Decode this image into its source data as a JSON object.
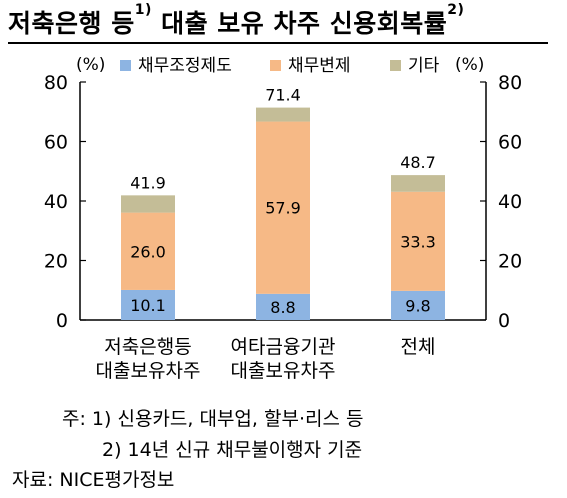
{
  "title": {
    "text": "저축은행 등",
    "sup1": "1)",
    "text2": "대출 보유 차주 신용회복률",
    "sup2": "2)"
  },
  "chart_data": {
    "type": "bar",
    "stacked": true,
    "title": "저축은행 등 대출 보유 차주 신용회복률",
    "y_unit_left": "(%)",
    "y_unit_right": "(%)",
    "ylim": [
      0,
      80
    ],
    "yticks": [
      0,
      20,
      40,
      60,
      80
    ],
    "dual_axis_mirrored": true,
    "grid": false,
    "legend_position": "top",
    "categories": [
      [
        "저축은행등",
        "대출보유차주"
      ],
      [
        "여타금융기관",
        "대출보유차주"
      ],
      [
        "전체"
      ]
    ],
    "series": [
      {
        "name": "채무조정제도",
        "color": "#8DB4E2",
        "values": [
          10.1,
          8.8,
          9.8
        ]
      },
      {
        "name": "채무변제",
        "color": "#F6B986",
        "values": [
          26.0,
          57.9,
          33.3
        ]
      },
      {
        "name": "기타",
        "color": "#C4BD97",
        "values": [
          5.8,
          4.7,
          5.6
        ]
      }
    ],
    "segment_labels": [
      [
        "10.1",
        "26.0",
        null
      ],
      [
        "8.8",
        "57.9",
        null
      ],
      [
        "9.8",
        "33.3",
        null
      ]
    ],
    "totals": [
      41.9,
      71.4,
      48.7
    ]
  },
  "notes": {
    "note1": "주: 1) 신용카드, 대부업, 할부·리스 등",
    "note2": "2) 14년 신규 채무불이행자 기준",
    "source": "자료: NICE평가정보"
  }
}
